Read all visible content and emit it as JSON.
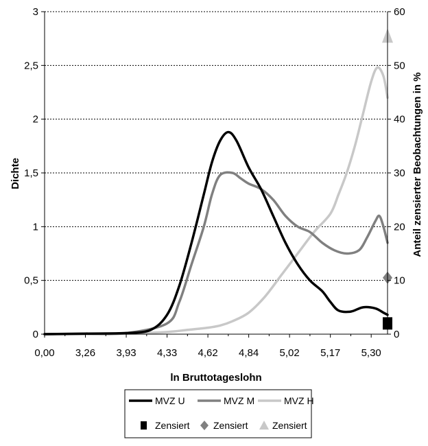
{
  "chart_data": {
    "type": "line",
    "xlabel": "ln Bruttotageslohn",
    "ylabel": "Dichte",
    "ylabel_right": "Anteil zensierter Beobachtungen in %",
    "x_tick_labels": [
      "0,00",
      "3,26",
      "3,93",
      "4,33",
      "4,62",
      "4,84",
      "5,02",
      "5,17",
      "5,30"
    ],
    "y_tick_labels": [
      "0",
      "0,5",
      "1",
      "1,5",
      "2",
      "2,5",
      "3"
    ],
    "y2_tick_labels": [
      "0",
      "10",
      "20",
      "30",
      "40",
      "50",
      "60"
    ],
    "ylim": [
      0,
      3
    ],
    "y2lim": [
      0,
      60
    ],
    "grid": true,
    "legend_position": "bottom",
    "note": "x positions are given as tick-index values (x axis labels are irregularly spaced quantiles)",
    "series": [
      {
        "name": "MVZ U",
        "color": "#000000",
        "x": [
          0,
          1,
          2,
          2.6,
          3,
          3.3,
          3.6,
          3.9,
          4.1,
          4.3,
          4.5,
          4.7,
          5,
          5.3,
          5.6,
          5.9,
          6.2,
          6.5,
          6.8,
          7,
          7.2,
          7.5,
          7.8,
          8.1,
          8.3,
          8.4
        ],
        "values": [
          0,
          0.005,
          0.01,
          0.04,
          0.18,
          0.45,
          0.85,
          1.3,
          1.6,
          1.8,
          1.88,
          1.8,
          1.55,
          1.35,
          1.1,
          0.85,
          0.65,
          0.5,
          0.4,
          0.3,
          0.22,
          0.21,
          0.25,
          0.24,
          0.2,
          0.18
        ]
      },
      {
        "name": "MVZ M",
        "color": "#808080",
        "x": [
          0,
          1,
          2,
          3,
          3.3,
          3.6,
          3.9,
          4.1,
          4.3,
          4.6,
          4.8,
          5,
          5.3,
          5.6,
          5.9,
          6.2,
          6.5,
          6.8,
          7.1,
          7.4,
          7.7,
          7.9,
          8.1,
          8.2,
          8.3,
          8.4
        ],
        "values": [
          0,
          0.003,
          0.01,
          0.1,
          0.3,
          0.65,
          1.0,
          1.3,
          1.48,
          1.5,
          1.45,
          1.4,
          1.35,
          1.25,
          1.1,
          1.0,
          0.95,
          0.85,
          0.78,
          0.75,
          0.78,
          0.9,
          1.05,
          1.1,
          1.0,
          0.85
        ]
      },
      {
        "name": "MVZ H",
        "color": "#c8c8c8",
        "x": [
          0,
          1,
          2,
          3,
          3.5,
          4,
          4.3,
          4.6,
          5,
          5.4,
          5.8,
          6.2,
          6.6,
          7,
          7.2,
          7.4,
          7.6,
          7.8,
          8,
          8.15,
          8.3,
          8.4
        ],
        "values": [
          0,
          0.002,
          0.005,
          0.02,
          0.04,
          0.06,
          0.08,
          0.12,
          0.2,
          0.35,
          0.55,
          0.75,
          0.95,
          1.12,
          1.3,
          1.5,
          1.75,
          2.05,
          2.35,
          2.48,
          2.4,
          2.2
        ]
      }
    ],
    "censored": [
      {
        "name": "Zensiert",
        "marker": "square",
        "color": "#000000",
        "x": 8.4,
        "value": 2
      },
      {
        "name": "Zensiert",
        "marker": "diamond",
        "color": "#808080",
        "x": 8.4,
        "value": 10.5
      },
      {
        "name": "Zensiert",
        "marker": "triangle",
        "color": "#c8c8c8",
        "x": 8.4,
        "value": 55.5
      }
    ]
  }
}
